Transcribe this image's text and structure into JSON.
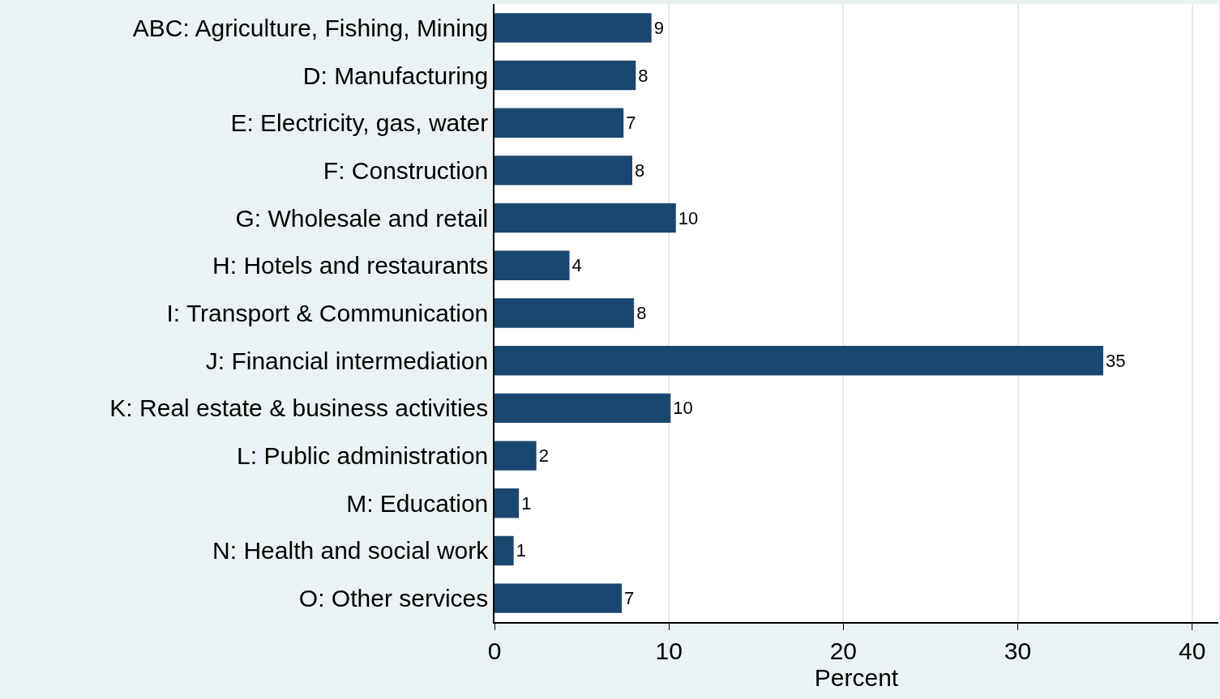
{
  "chart_data": {
    "type": "bar",
    "orientation": "horizontal",
    "xlabel": "Percent",
    "categories": [
      "ABC: Agriculture, Fishing, Mining",
      "D: Manufacturing",
      "E: Electricity, gas, water",
      "F: Construction",
      "G: Wholesale and retail",
      "H: Hotels and restaurants",
      "I: Transport & Communication",
      "J: Financial intermediation",
      "K: Real estate & business activities",
      "L: Public administration",
      "M: Education",
      "N: Health and social work",
      "O: Other services"
    ],
    "values": [
      9.0,
      8.1,
      7.4,
      7.9,
      10.4,
      4.3,
      8.0,
      34.9,
      10.1,
      2.4,
      1.4,
      1.1,
      7.3
    ],
    "value_labels": [
      "9",
      "8",
      "7",
      "8",
      "10",
      "4",
      "8",
      "35",
      "10",
      "2",
      "1",
      "1",
      "7"
    ],
    "color": "#1a476f",
    "xlim": [
      0,
      41.5
    ],
    "xticks": [
      0,
      10,
      20,
      30,
      40
    ],
    "grid": "x",
    "legend": false
  }
}
